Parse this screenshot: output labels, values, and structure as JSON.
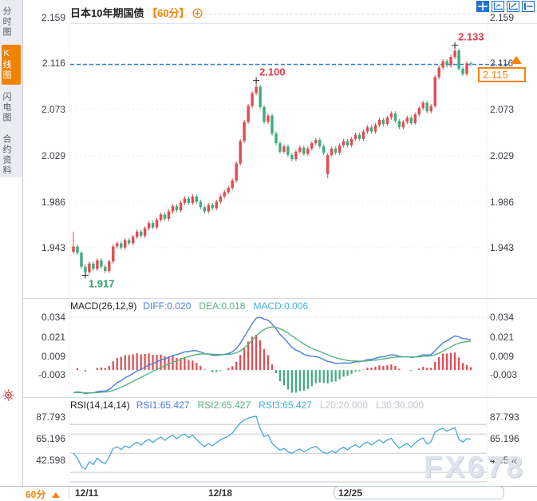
{
  "header": {
    "title": "日本10年期国债",
    "timeframe_tag": "【60分】",
    "toolbar_icons": [
      "move-tool",
      "scale-x-tool",
      "scale-y-tool",
      "pan-right-tool"
    ],
    "expand_icon": "expand-circle-plus"
  },
  "sidebar": {
    "tabs": [
      {
        "label": "分时图",
        "active": false
      },
      {
        "label": "K线图",
        "active": true
      },
      {
        "label": "闪电图",
        "active": false
      },
      {
        "label": "合约资料",
        "active": false
      }
    ],
    "sun_icon": "sun-marker"
  },
  "bottom": {
    "timeframe": "60分",
    "dates": [
      {
        "label": "12/11",
        "x": 93
      },
      {
        "label": "12/18",
        "x": 260
      },
      {
        "label": "12/25",
        "x": 423
      }
    ]
  },
  "watermark": "FX678",
  "colors": {
    "accent_orange": "#f7820a",
    "up_candle": "#e24b50",
    "down_candle": "#3fab7c",
    "dashed_price_line": "#2b7fd4",
    "diff_line": "#4a7ed9",
    "dea_line": "#55b47f",
    "rsi_line": "#45a8da",
    "annotation_red": "#e03b4e",
    "annotation_green": "#2fa46c"
  },
  "chart_data": [
    {
      "type": "candlestick",
      "title": "日本10年期国债 60分 K线图",
      "y_ticks": [
        2.159,
        2.116,
        2.073,
        2.029,
        1.986,
        1.943
      ],
      "last_price": 2.115,
      "last_price_label": "2.115",
      "closes": [
        1.944,
        1.938,
        1.925,
        1.92,
        1.928,
        1.923,
        1.931,
        1.925,
        1.921,
        1.93,
        1.944,
        1.947,
        1.943,
        1.95,
        1.947,
        1.953,
        1.958,
        1.954,
        1.961,
        1.966,
        1.962,
        1.969,
        1.974,
        1.97,
        1.977,
        1.982,
        1.978,
        1.985,
        1.989,
        1.985,
        1.991,
        1.986,
        1.981,
        1.977,
        1.983,
        1.98,
        1.986,
        1.991,
        1.995,
        1.999,
        2.006,
        2.022,
        2.043,
        2.061,
        2.076,
        2.088,
        2.094,
        2.075,
        2.061,
        2.067,
        2.05,
        2.041,
        2.033,
        2.038,
        2.03,
        2.026,
        2.033,
        2.037,
        2.031,
        2.036,
        2.041,
        2.044,
        2.038,
        2.032,
        2.03,
        2.036,
        2.032,
        2.039,
        2.043,
        2.039,
        2.045,
        2.049,
        2.045,
        2.052,
        2.056,
        2.052,
        2.058,
        2.063,
        2.059,
        2.065,
        2.069,
        2.062,
        2.056,
        2.061,
        2.065,
        2.06,
        2.068,
        2.074,
        2.079,
        2.071,
        2.076,
        2.103,
        2.112,
        2.118,
        2.114,
        2.122,
        2.128,
        2.111,
        2.106,
        2.116,
        2.115
      ],
      "overrides": {
        "0": {
          "open": 1.939,
          "high": 1.958
        },
        "3": {
          "low": 1.917
        },
        "46": {
          "high": 2.1
        },
        "64": {
          "open": 2.012,
          "low": 2.008
        },
        "96": {
          "high": 2.133
        }
      },
      "annotations": [
        {
          "index": 3,
          "label": "1.917",
          "color": "#2fa46c",
          "pos": "below"
        },
        {
          "index": 46,
          "label": "2.100",
          "color": "#e03b4e",
          "pos": "above"
        },
        {
          "index": 96,
          "label": "2.133",
          "color": "#e03b4e",
          "pos": "above"
        }
      ]
    },
    {
      "type": "macd",
      "title": "MACD(26,12,9)",
      "readouts": [
        {
          "label": "DIFF:0.020",
          "color": "#4a7ed9"
        },
        {
          "label": "DEA:0.018",
          "color": "#55b47f"
        },
        {
          "label": "MACD:0.006",
          "color": "#3eb1d8"
        }
      ],
      "y_ticks": [
        0.034,
        0.021,
        0.009,
        -0.003
      ],
      "params": {
        "slow": 26,
        "fast": 12,
        "signal": 9
      }
    },
    {
      "type": "rsi",
      "title": "RSI(14,14,14)",
      "readouts": [
        {
          "label": "RSI1:65.427",
          "color": "#4a7ed9"
        },
        {
          "label": "RSI2:65.427",
          "color": "#55b47f"
        },
        {
          "label": "RSI3:65.427",
          "color": "#3eb1d8"
        },
        {
          "label": "L20:20.000",
          "color": "#c4c4cc"
        },
        {
          "label": "L30:30.000",
          "color": "#c4c4cc"
        }
      ],
      "y_ticks": [
        87.793,
        65.196,
        42.598
      ],
      "ref_lines": [
        80,
        70,
        50,
        30,
        20
      ],
      "period": 14
    }
  ]
}
